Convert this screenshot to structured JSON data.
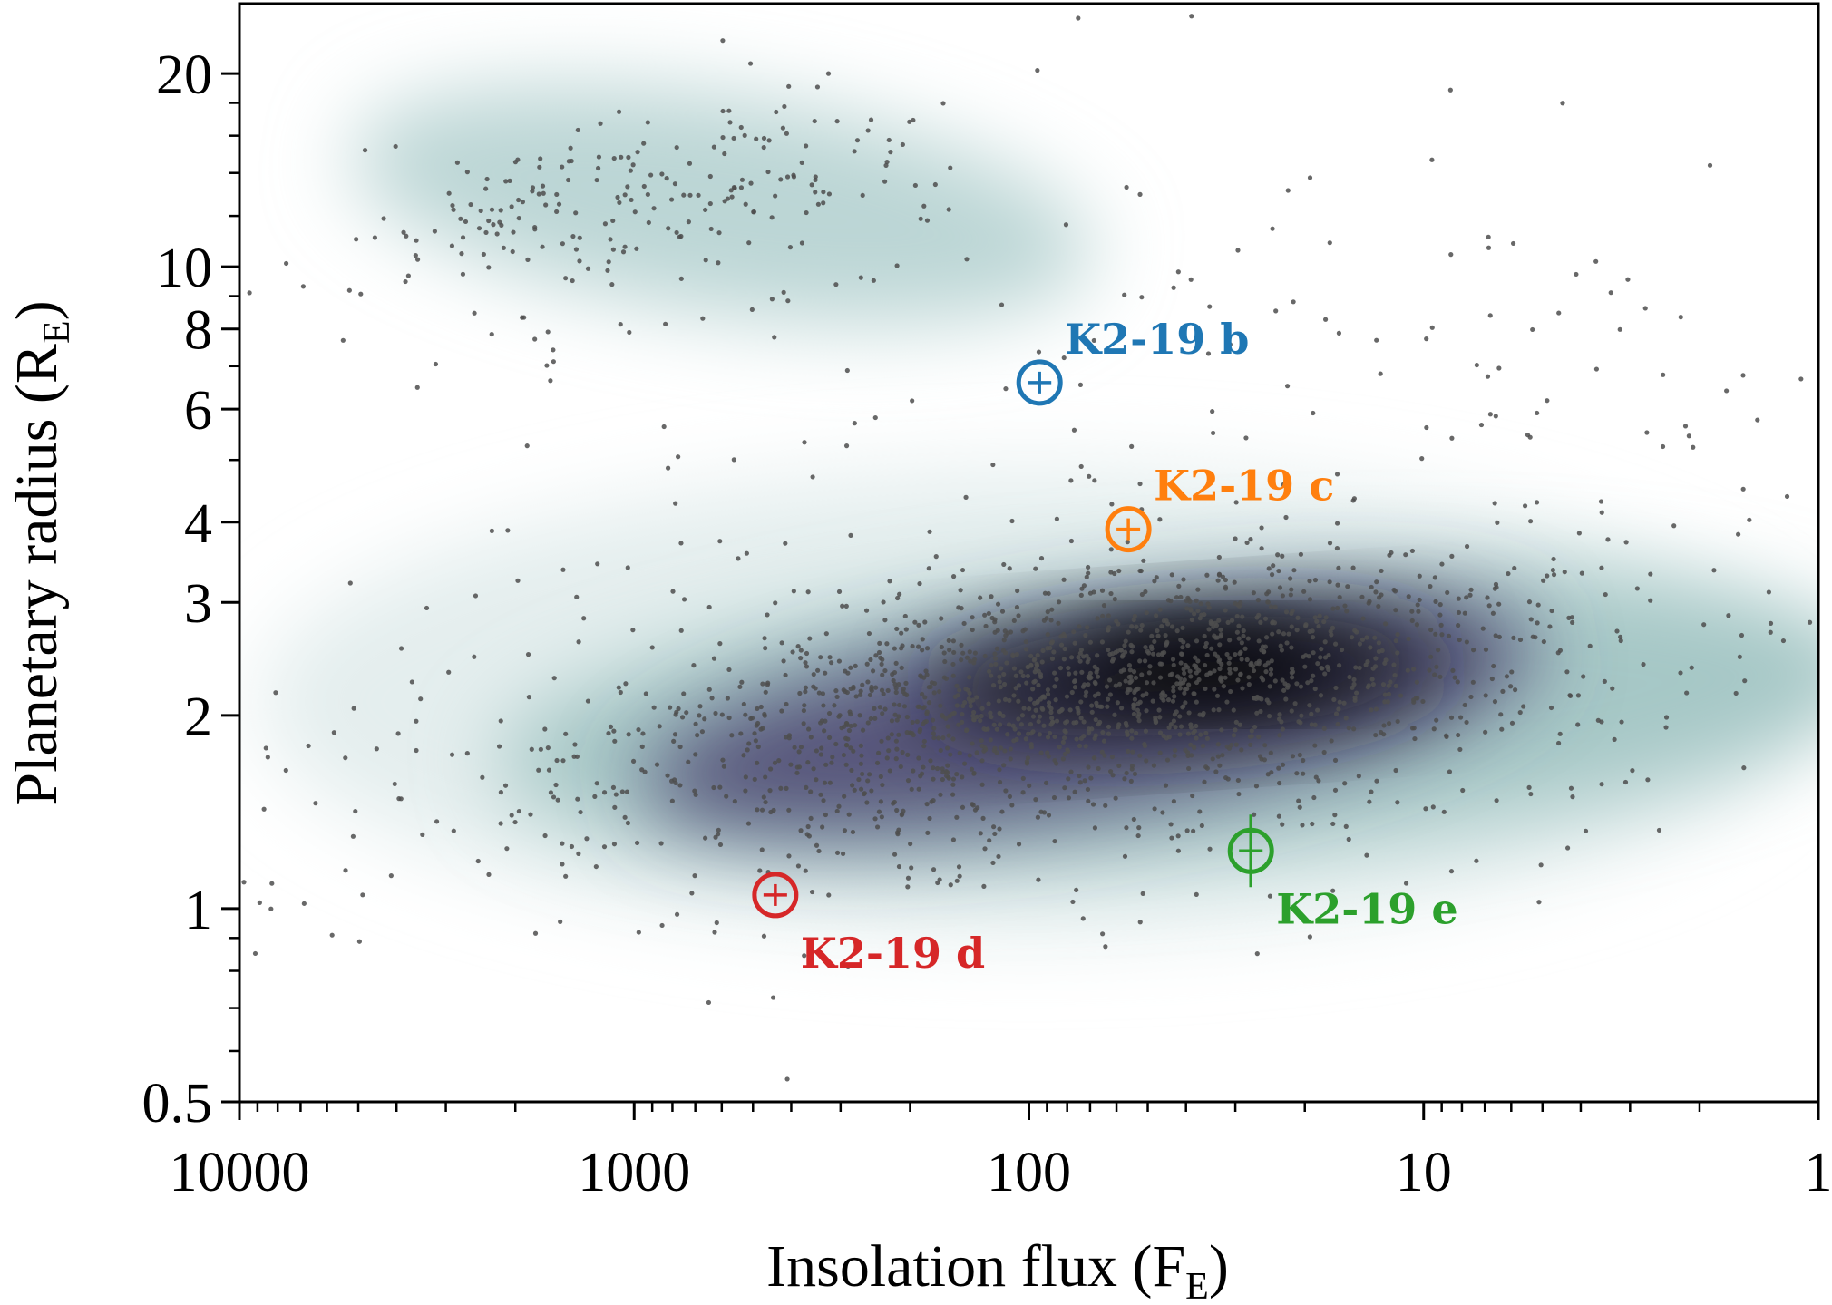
{
  "chart_data": {
    "type": "scatter",
    "title": "",
    "xlabel": "Insolation flux",
    "xlabel_sub": "E",
    "xlabel_prefix": "F",
    "ylabel": "Planetary radius",
    "ylabel_prefix": "R",
    "ylabel_sub": "E",
    "xscale": "log",
    "yscale": "log",
    "x_reversed": true,
    "xlim": [
      10000,
      1
    ],
    "ylim": [
      0.5,
      25.7
    ],
    "xticks": [
      10000,
      1000,
      100,
      10,
      1
    ],
    "xtick_labels": [
      "10000",
      "1000",
      "100",
      "10",
      "1"
    ],
    "yticks": [
      0.5,
      1,
      2,
      3,
      4,
      6,
      8,
      10,
      20
    ],
    "ytick_labels": [
      "0.5",
      "1",
      "2",
      "3",
      "4",
      "6",
      "8",
      "10",
      "20"
    ],
    "grid": false,
    "planets": [
      {
        "name": "K2-19 b",
        "flux": 94,
        "radius": 6.6,
        "color": "#1f77b4",
        "label_pos": "upper-right"
      },
      {
        "name": "K2-19 c",
        "flux": 56,
        "radius": 3.9,
        "color": "#ff7f0e",
        "label_pos": "upper-right"
      },
      {
        "name": "K2-19 d",
        "flux": 439,
        "radius": 1.05,
        "color": "#d62728",
        "label_pos": "lower-right"
      },
      {
        "name": "K2-19 e",
        "flux": 27.4,
        "radius": 1.23,
        "color": "#2ca02c",
        "label_pos": "lower-right"
      }
    ],
    "background_population": {
      "point_color": "#4d4d4d",
      "clusters": [
        {
          "flux": 60,
          "radius": 2.25,
          "sigma_log_flux": 0.55,
          "sigma_log_radius": 0.09,
          "tilt": 0.08,
          "count": 1300
        },
        {
          "flux": 120,
          "radius": 1.8,
          "sigma_log_flux": 0.95,
          "sigma_log_radius": 0.14,
          "tilt": 0.06,
          "count": 650
        },
        {
          "flux": 900,
          "radius": 13,
          "sigma_log_flux": 0.38,
          "sigma_log_radius": 0.07,
          "tilt": 0.12,
          "count": 220
        },
        {
          "flux": 40,
          "radius": 7,
          "sigma_log_flux": 1.0,
          "sigma_log_radius": 0.22,
          "tilt": 0.0,
          "count": 170
        }
      ]
    },
    "density": [
      {
        "flux": 100,
        "radius": 2.1,
        "sigma_log_flux": 1.95,
        "sigma_log_radius": 0.36,
        "angle": 0,
        "color": "#e4eeee"
      },
      {
        "flux": 600,
        "radius": 12.5,
        "sigma_log_flux": 0.95,
        "sigma_log_radius": 0.17,
        "angle": 8,
        "color": "#bcd6d5"
      },
      {
        "flux": 40,
        "radius": 2.0,
        "sigma_log_flux": 1.75,
        "sigma_log_radius": 0.22,
        "angle": -4,
        "color": "#a6c7c6"
      },
      {
        "flux": 70,
        "radius": 2.0,
        "sigma_log_flux": 1.15,
        "sigma_log_radius": 0.15,
        "angle": -9,
        "color": "#57547a"
      },
      {
        "flux": 40,
        "radius": 2.3,
        "sigma_log_flux": 0.65,
        "sigma_log_radius": 0.09,
        "angle": -4,
        "color": "#1b1a28"
      },
      {
        "flux": 35,
        "radius": 2.4,
        "sigma_log_flux": 0.32,
        "sigma_log_radius": 0.05,
        "angle": 0,
        "color": "#000000"
      }
    ]
  }
}
